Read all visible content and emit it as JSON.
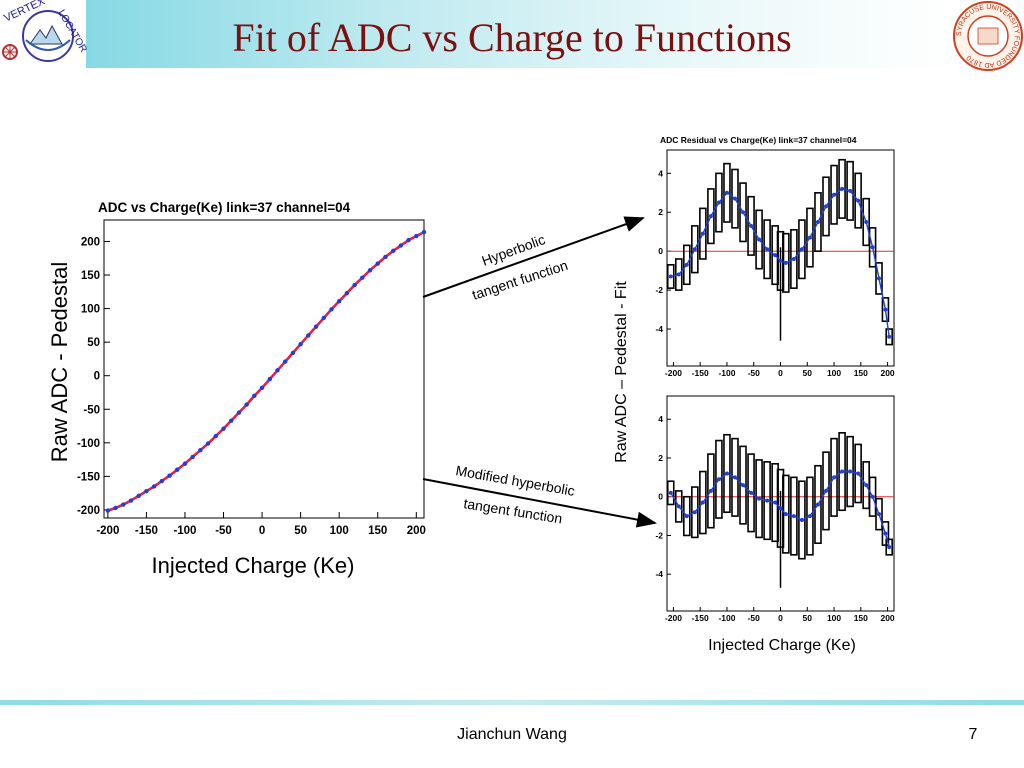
{
  "slide": {
    "title": "Fit of ADC vs Charge to Functions",
    "footer_author": "Jianchun Wang",
    "page_number": "7",
    "title_color": "#7a1010"
  },
  "logos": {
    "left": {
      "icon": "vertex-locator-logo-icon",
      "top_text": "VERTEX",
      "side_text": "LOCATOR"
    },
    "right": {
      "icon": "syracuse-university-seal-icon",
      "text": "SYRACUSE UNIVERSITY FOUNDED AD 1870"
    }
  },
  "annotations": {
    "upper_arrow_line1": "Hyperbolic",
    "upper_arrow_line2": "tangent function",
    "lower_arrow_line1": "Modified hyperbolic",
    "lower_arrow_line2": "tangent function"
  },
  "chart_data": [
    {
      "type": "scatter",
      "title": "ADC vs Charge(Ke) link=37 channel=04",
      "xlabel": "Injected Charge (Ke)",
      "ylabel": "Raw ADC - Pedestal",
      "xlim": [
        -205,
        210
      ],
      "ylim": [
        -212,
        232
      ],
      "xticks": [
        -200,
        -150,
        -100,
        -50,
        0,
        50,
        100,
        150,
        200
      ],
      "xtick_labels": [
        "-200",
        "-150",
        "-100",
        "-50",
        "0",
        "50",
        "100",
        "150",
        "200"
      ],
      "yticks": [
        -200,
        -150,
        -100,
        -50,
        0,
        50,
        100,
        150,
        200
      ],
      "ytick_labels": [
        "-200",
        "-150",
        "-100",
        "-50",
        "0",
        "50",
        "100",
        "150",
        "200"
      ],
      "x": [
        -200,
        -190,
        -180,
        -170,
        -160,
        -150,
        -140,
        -130,
        -120,
        -110,
        -100,
        -90,
        -80,
        -70,
        -60,
        -50,
        -40,
        -30,
        -20,
        -10,
        0,
        10,
        20,
        30,
        40,
        50,
        60,
        70,
        80,
        90,
        100,
        110,
        120,
        130,
        140,
        150,
        160,
        170,
        180,
        190,
        200,
        210
      ],
      "series": [
        {
          "role": "data points",
          "color": "#1f3fd8",
          "values": [
            -201,
            -197,
            -192,
            -186,
            -179,
            -172,
            -165,
            -157,
            -149,
            -140,
            -131,
            -121,
            -111,
            -101,
            -90,
            -79,
            -67,
            -55,
            -43,
            -30,
            -18,
            -5,
            8,
            21,
            34,
            47,
            60,
            73,
            86,
            99,
            111,
            123,
            135,
            146,
            157,
            167,
            177,
            186,
            194,
            202,
            208,
            214
          ]
        },
        {
          "role": "fit curve",
          "color": "#e0204a",
          "values": [
            -201,
            -197,
            -192,
            -186,
            -179,
            -172,
            -165,
            -157,
            -149,
            -140,
            -131,
            -121,
            -111,
            -101,
            -90,
            -79,
            -67,
            -55,
            -43,
            -30,
            -18,
            -5,
            8,
            21,
            34,
            47,
            60,
            73,
            86,
            99,
            111,
            123,
            135,
            146,
            157,
            167,
            177,
            186,
            194,
            202,
            208,
            214
          ]
        }
      ],
      "grid": false
    },
    {
      "type": "scatter",
      "title": "ADC Residual vs Charge(Ke) link=37 channel=04",
      "xlabel": "Injected Charge (Ke)",
      "ylabel": "Raw ADC – Pedestal - Fit",
      "xlim": [
        -212,
        212
      ],
      "ylim": [
        -5.9,
        5.2
      ],
      "xticks": [
        -200,
        -150,
        -100,
        -50,
        0,
        50,
        100,
        150,
        200
      ],
      "xtick_labels": [
        "-200",
        "-150",
        "-100",
        "-50",
        "0",
        "50",
        "100",
        "150",
        "200"
      ],
      "yticks": [
        -4,
        -2,
        0,
        2,
        4
      ],
      "ytick_labels": [
        "-4",
        "-2",
        "0",
        "2",
        "4"
      ],
      "x": [
        -205,
        -190,
        -175,
        -160,
        -145,
        -130,
        -115,
        -100,
        -85,
        -70,
        -55,
        -40,
        -25,
        -10,
        0,
        10,
        25,
        40,
        55,
        70,
        85,
        100,
        115,
        130,
        145,
        160,
        172,
        184,
        196,
        203
      ],
      "series": [
        {
          "role": "residual",
          "color": "#1f3fd8",
          "values": [
            -1.3,
            -1.2,
            -0.7,
            0.1,
            0.9,
            1.8,
            2.5,
            3.0,
            2.7,
            2.0,
            1.3,
            0.6,
            0.1,
            -0.2,
            -0.5,
            -0.6,
            -0.4,
            0.1,
            0.7,
            1.5,
            2.3,
            2.9,
            3.2,
            3.1,
            2.6,
            1.5,
            0.2,
            -1.4,
            -3.0,
            -4.4
          ]
        },
        {
          "role": "error bar half-width",
          "values": [
            0.6,
            0.8,
            1.0,
            1.2,
            1.3,
            1.4,
            1.5,
            1.5,
            1.5,
            1.5,
            1.5,
            1.5,
            1.5,
            1.5,
            1.5,
            1.5,
            1.5,
            1.5,
            1.5,
            1.5,
            1.5,
            1.5,
            1.5,
            1.5,
            1.4,
            1.2,
            1.0,
            0.8,
            0.6,
            0.4
          ]
        },
        {
          "role": "zero line",
          "color": "#e03030",
          "values": [
            0
          ]
        }
      ],
      "outlier": {
        "x": 0,
        "y_low": -4.6,
        "y_high": 0.2
      }
    },
    {
      "type": "scatter",
      "title": "",
      "xlabel": "Injected Charge (Ke)",
      "ylabel": "Raw ADC – Pedestal - Fit",
      "xlim": [
        -212,
        212
      ],
      "ylim": [
        -5.9,
        5.2
      ],
      "xticks": [
        -200,
        -150,
        -100,
        -50,
        0,
        50,
        100,
        150,
        200
      ],
      "xtick_labels": [
        "-200",
        "-150",
        "-100",
        "-50",
        "0",
        "50",
        "100",
        "150",
        "200"
      ],
      "yticks": [
        -4,
        -2,
        0,
        2,
        4
      ],
      "ytick_labels": [
        "-4",
        "-2",
        "0",
        "2",
        "4"
      ],
      "x": [
        -205,
        -190,
        -175,
        -160,
        -145,
        -130,
        -115,
        -100,
        -85,
        -70,
        -55,
        -40,
        -25,
        -10,
        0,
        10,
        25,
        40,
        55,
        70,
        85,
        100,
        115,
        130,
        145,
        160,
        172,
        184,
        196,
        203
      ],
      "series": [
        {
          "role": "residual",
          "color": "#1f3fd8",
          "values": [
            0.2,
            -0.5,
            -1.0,
            -0.8,
            -0.3,
            0.3,
            0.9,
            1.2,
            1.0,
            0.6,
            0.2,
            -0.1,
            -0.2,
            -0.3,
            -0.6,
            -0.9,
            -1.0,
            -1.2,
            -1.0,
            -0.4,
            0.3,
            1.0,
            1.3,
            1.3,
            1.2,
            0.6,
            0.0,
            -0.9,
            -1.9,
            -2.6
          ]
        },
        {
          "role": "error bar half-width",
          "values": [
            0.6,
            0.8,
            1.0,
            1.3,
            1.6,
            1.9,
            2.0,
            2.0,
            2.0,
            2.0,
            2.0,
            2.0,
            2.0,
            2.0,
            2.0,
            2.0,
            2.0,
            2.0,
            2.0,
            2.0,
            2.0,
            2.0,
            2.0,
            1.8,
            1.5,
            1.2,
            1.0,
            0.8,
            0.6,
            0.4
          ]
        },
        {
          "role": "zero line",
          "color": "#e03030",
          "values": [
            0
          ]
        }
      ],
      "outlier": {
        "x": 0,
        "y_low": -4.7,
        "y_high": 0.3
      }
    }
  ]
}
